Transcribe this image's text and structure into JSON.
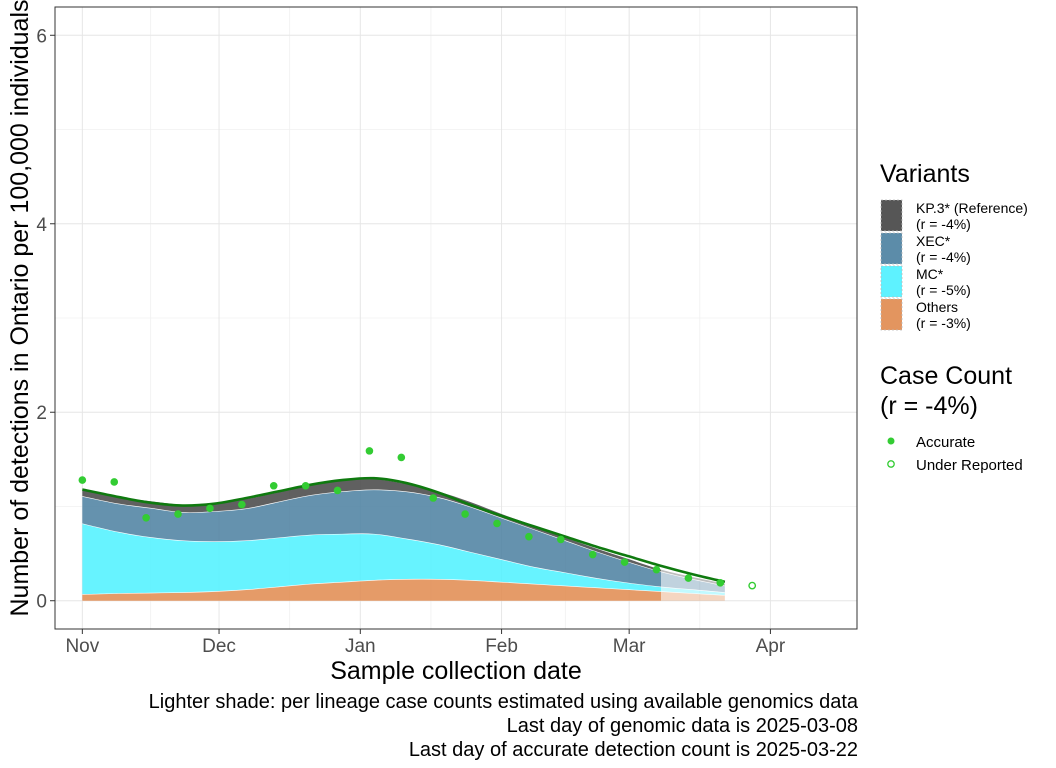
{
  "chart_data": {
    "type": "area",
    "xlabel": "Sample collection date",
    "ylabel": "Number of detections in Ontario per 100,000 individuals",
    "ylim": [
      -0.3,
      6.3
    ],
    "xlim": [
      "2024-10-26",
      "2025-04-20"
    ],
    "y_ticks": [
      0,
      2,
      4,
      6
    ],
    "y_tick_labels": [
      "0",
      "2",
      "4",
      "6"
    ],
    "x_ticks": [
      "2024-11-01",
      "2024-12-01",
      "2025-01-01",
      "2025-02-01",
      "2025-03-01",
      "2025-04-01"
    ],
    "x_tick_labels": [
      "Nov",
      "Dec",
      "Jan",
      "Feb",
      "Mar",
      "Apr"
    ],
    "grid": true,
    "legend_position": "right",
    "x": [
      "2024-11-01",
      "2024-11-09",
      "2024-11-16",
      "2024-11-23",
      "2024-11-30",
      "2024-12-07",
      "2024-12-14",
      "2024-12-21",
      "2024-12-28",
      "2025-01-04",
      "2025-01-11",
      "2025-01-18",
      "2025-01-25",
      "2025-02-01",
      "2025-02-08",
      "2025-02-15",
      "2025-02-22",
      "2025-03-01",
      "2025-03-08",
      "2025-03-15",
      "2025-03-22"
    ],
    "genomic_data_last_day": "2025-03-08",
    "series": [
      {
        "name": "Others",
        "legend_label": "Others",
        "r_label": "(r = -3%)",
        "color": "#E08A4E",
        "values": [
          0.07,
          0.08,
          0.085,
          0.09,
          0.1,
          0.12,
          0.15,
          0.18,
          0.2,
          0.22,
          0.23,
          0.23,
          0.22,
          0.2,
          0.18,
          0.16,
          0.14,
          0.12,
          0.1,
          0.08,
          0.06
        ]
      },
      {
        "name": "MC*",
        "legend_label": "MC*",
        "r_label": "(r = -5%)",
        "color": "#4CF1FF",
        "values": [
          0.75,
          0.65,
          0.59,
          0.55,
          0.53,
          0.52,
          0.52,
          0.52,
          0.51,
          0.49,
          0.43,
          0.37,
          0.3,
          0.24,
          0.18,
          0.14,
          0.1,
          0.07,
          0.05,
          0.04,
          0.03
        ]
      },
      {
        "name": "XEC*",
        "legend_label": "XEC*",
        "r_label": "(r = -4%)",
        "color": "#4A7FA0",
        "values": [
          0.29,
          0.3,
          0.31,
          0.3,
          0.32,
          0.34,
          0.38,
          0.42,
          0.45,
          0.47,
          0.5,
          0.5,
          0.48,
          0.44,
          0.4,
          0.34,
          0.28,
          0.22,
          0.16,
          0.11,
          0.07
        ]
      },
      {
        "name": "KP.3* (Reference)",
        "legend_label": "KP.3* (Reference)",
        "r_label": "(r = -4%)",
        "color": "#444444",
        "values": [
          0.06,
          0.07,
          0.07,
          0.08,
          0.09,
          0.1,
          0.1,
          0.1,
          0.11,
          0.11,
          0.08,
          0.06,
          0.05,
          0.04,
          0.04,
          0.03,
          0.03,
          0.03,
          0.02,
          0.02,
          0.02
        ]
      }
    ],
    "total_line": {
      "color": "#0F7A0F",
      "values": [
        1.18,
        1.1,
        1.04,
        1.01,
        1.03,
        1.09,
        1.16,
        1.23,
        1.28,
        1.3,
        1.25,
        1.15,
        1.02,
        0.9,
        0.79,
        0.68,
        0.57,
        0.47,
        0.37,
        0.28,
        0.2
      ]
    },
    "case_count": {
      "title_line1": "Case Count",
      "title_line2": "(r = -4%)",
      "color": "#33CC33",
      "accurate_label": "Accurate",
      "under_reported_label": "Under Reported",
      "accurate_points": [
        {
          "x": "2024-11-01",
          "y": 1.28
        },
        {
          "x": "2024-11-08",
          "y": 1.26
        },
        {
          "x": "2024-11-15",
          "y": 0.88
        },
        {
          "x": "2024-11-22",
          "y": 0.92
        },
        {
          "x": "2024-11-29",
          "y": 0.98
        },
        {
          "x": "2024-12-06",
          "y": 1.02
        },
        {
          "x": "2024-12-13",
          "y": 1.22
        },
        {
          "x": "2024-12-20",
          "y": 1.22
        },
        {
          "x": "2024-12-27",
          "y": 1.17
        },
        {
          "x": "2025-01-03",
          "y": 1.59
        },
        {
          "x": "2025-01-10",
          "y": 1.52
        },
        {
          "x": "2025-01-17",
          "y": 1.09
        },
        {
          "x": "2025-01-24",
          "y": 0.92
        },
        {
          "x": "2025-01-31",
          "y": 0.82
        },
        {
          "x": "2025-02-07",
          "y": 0.68
        },
        {
          "x": "2025-02-14",
          "y": 0.65
        },
        {
          "x": "2025-02-21",
          "y": 0.49
        },
        {
          "x": "2025-02-28",
          "y": 0.41
        },
        {
          "x": "2025-03-07",
          "y": 0.33
        },
        {
          "x": "2025-03-14",
          "y": 0.24
        },
        {
          "x": "2025-03-21",
          "y": 0.19
        }
      ],
      "under_reported_points": [
        {
          "x": "2025-03-28",
          "y": 0.16
        }
      ]
    },
    "legend_title": "Variants"
  },
  "caption": {
    "line1": "Lighter shade: per lineage case counts estimated using available genomics data",
    "line2": "Last day of genomic data is 2025-03-08",
    "line3": "Last day of accurate detection count is 2025-03-22"
  }
}
